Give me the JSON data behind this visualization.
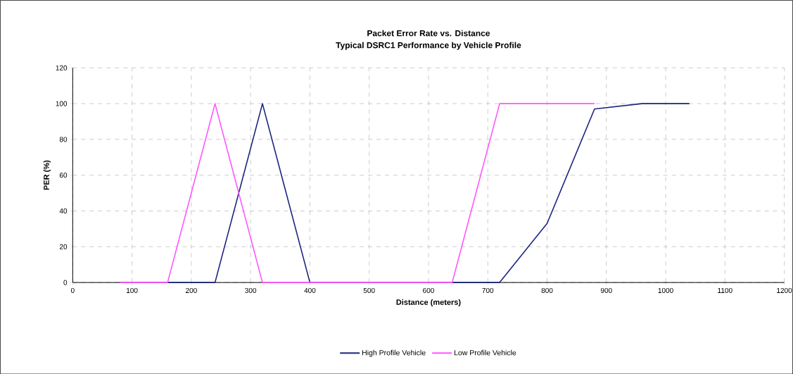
{
  "chart_data": {
    "type": "line",
    "title": "Packet Error Rate vs. Distance",
    "subtitle": "Typical DSRC1 Performance by Vehicle Profile",
    "xlabel": "Distance (meters)",
    "ylabel": "PER (%)",
    "series": [
      {
        "name": "High Profile Vehicle",
        "color": "#1a237e",
        "x": [
          80,
          160,
          240,
          320,
          400,
          480,
          560,
          640,
          720,
          800,
          880,
          960,
          1040
        ],
        "values": [
          0,
          0,
          0,
          100,
          0,
          0,
          0,
          0,
          0,
          33,
          97,
          100,
          100
        ]
      },
      {
        "name": "Low Profile Vehicle",
        "color": "#ff55ff",
        "x": [
          80,
          160,
          240,
          320,
          400,
          480,
          560,
          640,
          720,
          800,
          880
        ],
        "values": [
          0,
          0,
          100,
          0,
          0,
          0,
          0,
          0,
          100,
          100,
          100
        ]
      }
    ],
    "xlim": [
      0,
      1200
    ],
    "xticks": [
      0,
      100,
      200,
      300,
      400,
      500,
      600,
      700,
      800,
      900,
      1000,
      1100,
      1200
    ],
    "ylim": [
      0,
      120
    ],
    "yticks": [
      0,
      20,
      40,
      60,
      80,
      100,
      120
    ],
    "grid": true,
    "legend": "bottom",
    "marker": "none",
    "line_style": "solid"
  }
}
